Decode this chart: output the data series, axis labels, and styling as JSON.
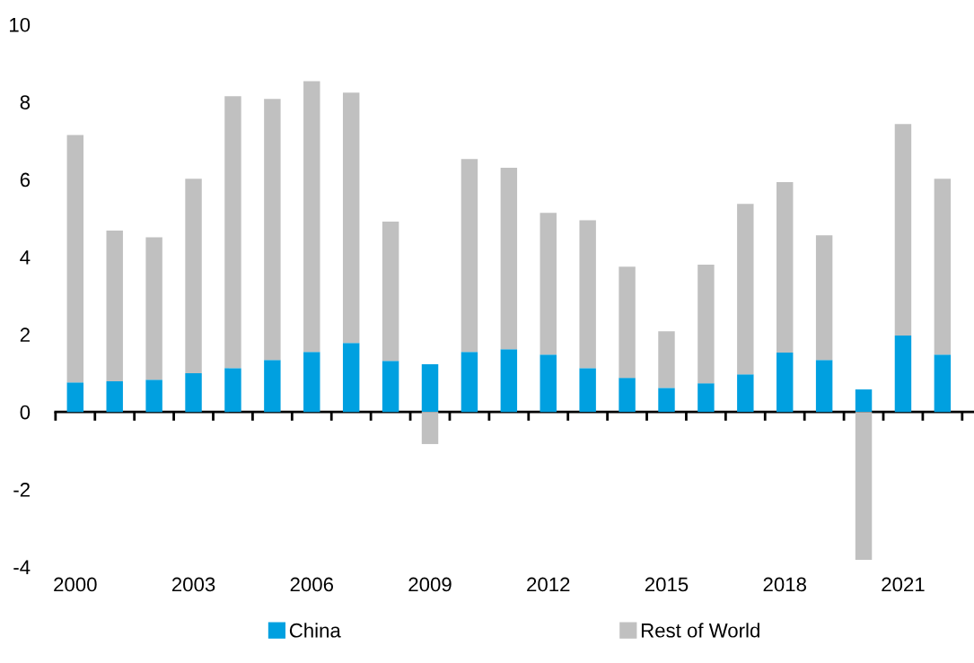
{
  "chart_data": {
    "type": "bar",
    "stacked": true,
    "x": [
      2000,
      2001,
      2002,
      2003,
      2004,
      2005,
      2006,
      2007,
      2008,
      2009,
      2010,
      2011,
      2012,
      2013,
      2014,
      2015,
      2016,
      2017,
      2018,
      2019,
      2020,
      2021,
      2022
    ],
    "series": [
      {
        "name": "China",
        "color": "#00a0e0",
        "values": [
          0.76,
          0.79,
          0.83,
          1.0,
          1.13,
          1.34,
          1.55,
          1.78,
          1.32,
          1.23,
          1.55,
          1.62,
          1.48,
          1.13,
          0.88,
          0.62,
          0.74,
          0.97,
          1.53,
          1.34,
          0.58,
          1.97,
          1.48
        ]
      },
      {
        "name": "Rest of World",
        "color": "#c0c0c0",
        "values": [
          6.39,
          3.89,
          3.68,
          5.02,
          7.02,
          6.74,
          6.99,
          6.46,
          3.59,
          -0.83,
          4.98,
          4.68,
          3.66,
          3.82,
          2.87,
          1.46,
          3.06,
          4.4,
          4.4,
          3.22,
          -3.82,
          5.46,
          4.54
        ]
      }
    ],
    "xlim": [
      1999.5,
      2022.8
    ],
    "xticks": [
      2000,
      2003,
      2006,
      2009,
      2012,
      2015,
      2018,
      2021,
      {
        "value": 1999.5,
        "label": null
      },
      {
        "value": 2000.5,
        "label": null
      },
      {
        "value": 2001.5,
        "label": null
      },
      {
        "value": 2002.5,
        "label": null
      },
      {
        "value": 2003.5,
        "label": null
      },
      {
        "value": 2004.5,
        "label": null
      },
      {
        "value": 2005.5,
        "label": null
      },
      {
        "value": 2006.5,
        "label": null
      },
      {
        "value": 2007.5,
        "label": null
      },
      {
        "value": 2008.5,
        "label": null
      },
      {
        "value": 2009.5,
        "label": null
      },
      {
        "value": 2010.5,
        "label": null
      },
      {
        "value": 2011.5,
        "label": null
      },
      {
        "value": 2012.5,
        "label": null
      },
      {
        "value": 2013.5,
        "label": null
      },
      {
        "value": 2014.5,
        "label": null
      },
      {
        "value": 2015.5,
        "label": null
      },
      {
        "value": 2016.5,
        "label": null
      },
      {
        "value": 2017.5,
        "label": null
      },
      {
        "value": 2018.5,
        "label": null
      },
      {
        "value": 2019.5,
        "label": null
      },
      {
        "value": 2020.5,
        "label": null
      },
      {
        "value": 2021.5,
        "label": null
      },
      {
        "value": 2022.5,
        "label": null
      }
    ],
    "ylim": [
      -4,
      10
    ],
    "yticks": [
      -4,
      -2,
      0,
      2,
      4,
      6,
      8,
      10
    ],
    "legend": "bottom"
  }
}
